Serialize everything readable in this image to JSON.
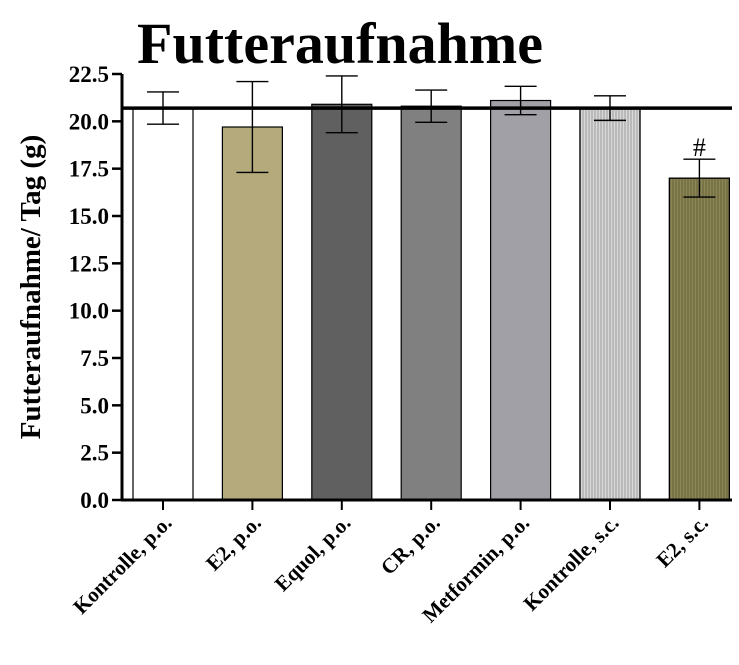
{
  "chart_data": {
    "type": "bar",
    "title": "Futteraufnahme",
    "ylabel": "Futteraufnahme/ Tag (g)",
    "xlabel": "",
    "ylim": [
      0,
      22.5
    ],
    "yticks": [
      "0.0",
      "2.5",
      "5.0",
      "7.5",
      "10.0",
      "12.5",
      "15.0",
      "17.5",
      "20.0",
      "22.5"
    ],
    "categories": [
      "Kontrolle, p.o.",
      "E2, p.o.",
      "Equol, p.o.",
      "CR, p.o.",
      "Metformin, p.o.",
      "Kontrolle, s.c.",
      "E2, s.c."
    ],
    "values": [
      20.7,
      19.7,
      20.9,
      20.8,
      21.1,
      20.7,
      17.0
    ],
    "error": [
      0.85,
      2.4,
      1.5,
      0.85,
      0.75,
      0.65,
      1.0
    ],
    "reference_line": 20.7,
    "annotations": [
      "",
      "",
      "",
      "",
      "",
      "",
      "#"
    ],
    "colors": [
      "#ffffff",
      "#b4aa7b",
      "#606060",
      "#808080",
      "#a0a0a6",
      "#d8d8d8",
      "#8c8654"
    ],
    "hatched": [
      false,
      false,
      false,
      false,
      false,
      true,
      true
    ],
    "grid": false,
    "legend": "none"
  }
}
